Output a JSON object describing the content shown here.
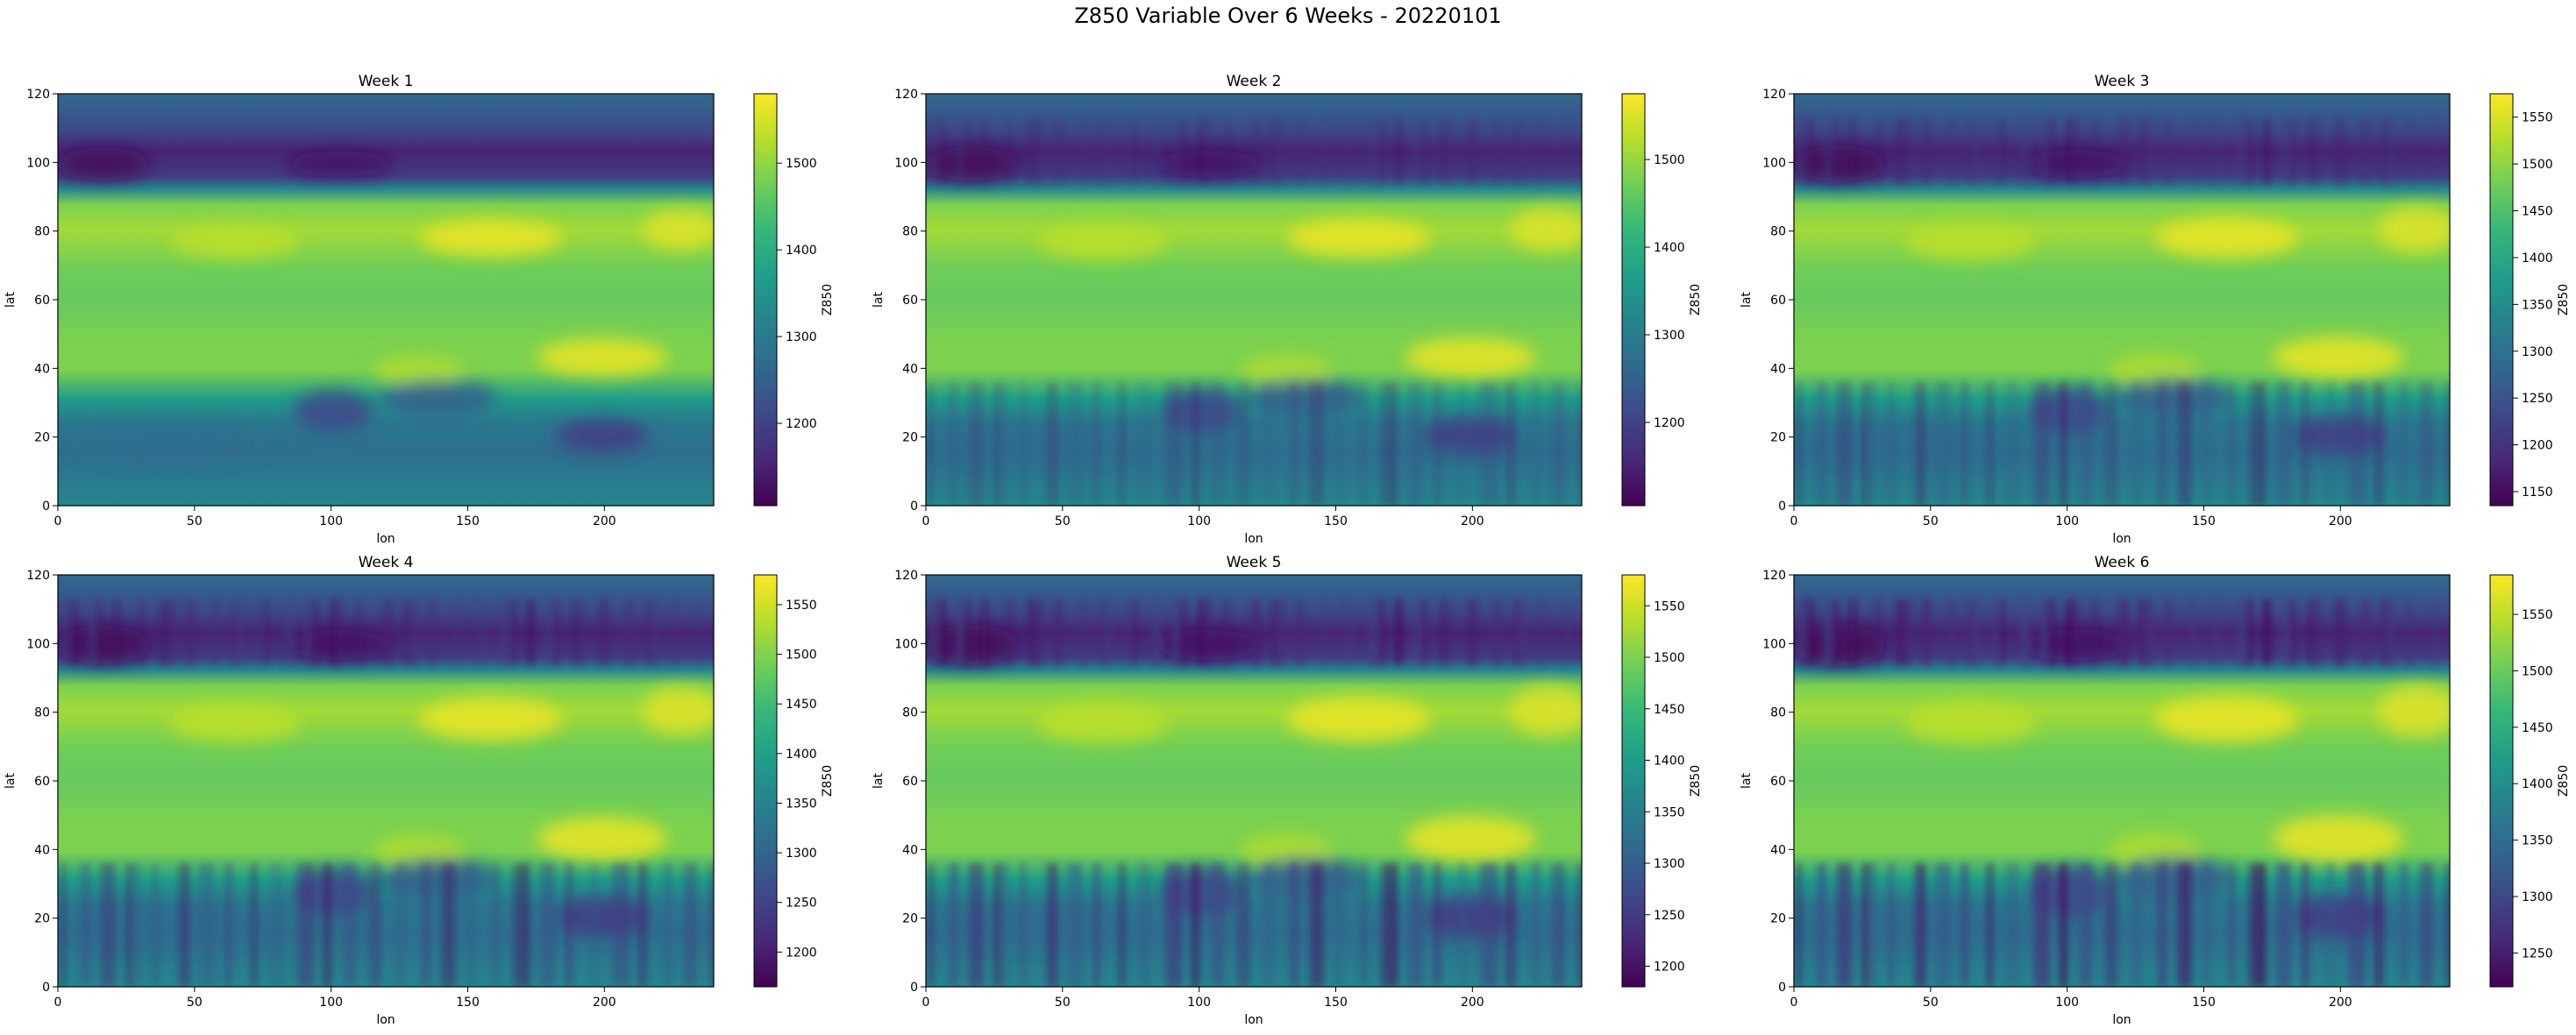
{
  "suptitle": "Z850 Variable Over 6 Weeks - 20220101",
  "colors": {
    "viridis": [
      "#440154",
      "#482878",
      "#3e4989",
      "#31688e",
      "#26828e",
      "#1f9e89",
      "#35b779",
      "#6ece58",
      "#b5de2b",
      "#fde725"
    ]
  },
  "chart_data": [
    {
      "type": "heatmap",
      "title": "Week 1",
      "xlabel": "lon",
      "ylabel": "lat",
      "xlim": [
        0,
        240
      ],
      "ylim": [
        0,
        120
      ],
      "xticks": [
        0,
        50,
        100,
        150,
        200
      ],
      "yticks": [
        0,
        20,
        40,
        60,
        80,
        100,
        120
      ],
      "colorbar": {
        "label": "Z850",
        "range": [
          1105,
          1580
        ],
        "ticks": [
          1200,
          1300,
          1400,
          1500
        ]
      }
    },
    {
      "type": "heatmap",
      "title": "Week 2",
      "xlabel": "lon",
      "ylabel": "lat",
      "xlim": [
        0,
        240
      ],
      "ylim": [
        0,
        120
      ],
      "xticks": [
        0,
        50,
        100,
        150,
        200
      ],
      "yticks": [
        0,
        20,
        40,
        60,
        80,
        100,
        120
      ],
      "colorbar": {
        "label": "Z850",
        "range": [
          1105,
          1575
        ],
        "ticks": [
          1200,
          1300,
          1400,
          1500
        ]
      }
    },
    {
      "type": "heatmap",
      "title": "Week 3",
      "xlabel": "lon",
      "ylabel": "lat",
      "xlim": [
        0,
        240
      ],
      "ylim": [
        0,
        120
      ],
      "xticks": [
        0,
        50,
        100,
        150,
        200
      ],
      "yticks": [
        0,
        20,
        40,
        60,
        80,
        100,
        120
      ],
      "colorbar": {
        "label": "Z850",
        "range": [
          1135,
          1575
        ],
        "ticks": [
          1150,
          1200,
          1250,
          1300,
          1350,
          1400,
          1450,
          1500,
          1550
        ]
      }
    },
    {
      "type": "heatmap",
      "title": "Week 4",
      "xlabel": "lon",
      "ylabel": "lat",
      "xlim": [
        0,
        240
      ],
      "ylim": [
        0,
        120
      ],
      "xticks": [
        0,
        50,
        100,
        150,
        200
      ],
      "yticks": [
        0,
        20,
        40,
        60,
        80,
        100,
        120
      ],
      "colorbar": {
        "label": "Z850",
        "range": [
          1165,
          1580
        ],
        "ticks": [
          1200,
          1250,
          1300,
          1350,
          1400,
          1450,
          1500,
          1550
        ]
      }
    },
    {
      "type": "heatmap",
      "title": "Week 5",
      "xlabel": "lon",
      "ylabel": "lat",
      "xlim": [
        0,
        240
      ],
      "ylim": [
        0,
        120
      ],
      "xticks": [
        0,
        50,
        100,
        150,
        200
      ],
      "yticks": [
        0,
        20,
        40,
        60,
        80,
        100,
        120
      ],
      "colorbar": {
        "label": "Z850",
        "range": [
          1180,
          1580
        ],
        "ticks": [
          1200,
          1250,
          1300,
          1350,
          1400,
          1450,
          1500,
          1550
        ]
      }
    },
    {
      "type": "heatmap",
      "title": "Week 6",
      "xlabel": "lon",
      "ylabel": "lat",
      "xlim": [
        0,
        240
      ],
      "ylim": [
        0,
        120
      ],
      "xticks": [
        0,
        50,
        100,
        150,
        200
      ],
      "yticks": [
        0,
        20,
        40,
        60,
        80,
        100,
        120
      ],
      "colorbar": {
        "label": "Z850",
        "range": [
          1220,
          1585
        ],
        "ticks": [
          1250,
          1300,
          1350,
          1400,
          1450,
          1500,
          1550
        ]
      }
    }
  ]
}
